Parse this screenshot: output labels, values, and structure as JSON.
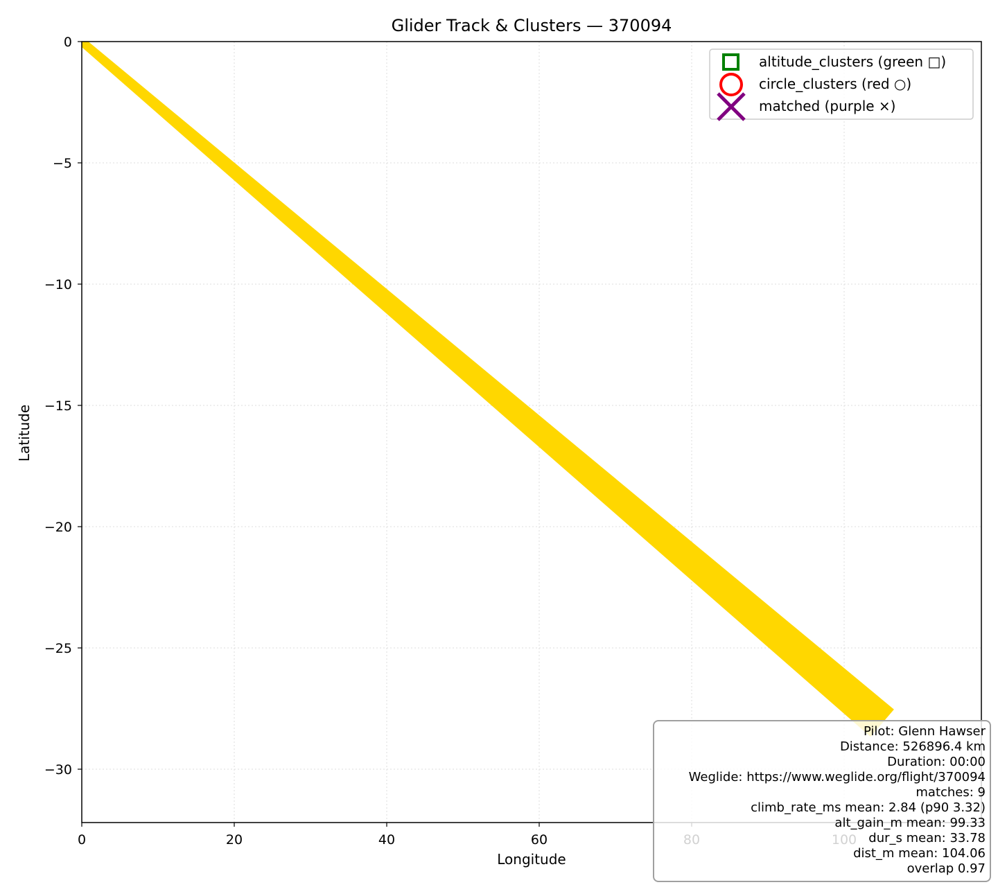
{
  "chart_data": {
    "type": "line",
    "title": "Glider Track & Clusters — 370094",
    "xlabel": "Longitude",
    "ylabel": "Latitude",
    "xlim": [
      0,
      118
    ],
    "ylim": [
      -32.2,
      0
    ],
    "x_ticks": [
      "0",
      "20",
      "40",
      "60",
      "80",
      "100"
    ],
    "y_ticks": [
      "0",
      "−5",
      "−10",
      "−15",
      "−20",
      "−25",
      "−30"
    ],
    "grid": true,
    "grid_style": "dotted",
    "track": {
      "color": "#FFD700",
      "x": [
        0,
        105
      ],
      "y": [
        0,
        -28.1
      ],
      "description_note": ""
    },
    "legend": {
      "position": "top-right",
      "entries": [
        {
          "label": "altitude_clusters (green □)",
          "marker": "square",
          "color": "#008000"
        },
        {
          "label": "circle_clusters (red ○)",
          "marker": "circle",
          "color": "#FF0000"
        },
        {
          "label": "matched (purple ×)",
          "marker": "x",
          "color": "#800080"
        }
      ]
    }
  },
  "info": {
    "lines": [
      "Pilot: Glenn Hawser",
      "Distance: 526896.4 km",
      "Duration: 00:00",
      "Weglide: https://www.weglide.org/flight/370094",
      "matches: 9",
      "climb_rate_ms mean: 2.84 (p90 3.32)",
      "alt_gain_m mean: 99.33",
      "dur_s mean: 33.78",
      "dist_m mean: 104.06",
      "overlap 0.97"
    ]
  }
}
